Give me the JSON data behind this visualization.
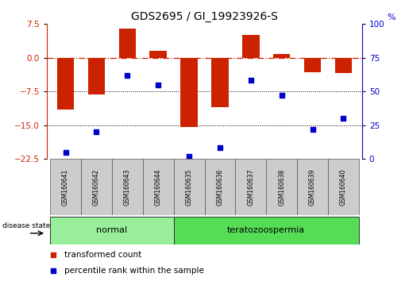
{
  "title": "GDS2695 / GI_19923926-S",
  "samples": [
    "GSM160641",
    "GSM160642",
    "GSM160643",
    "GSM160644",
    "GSM160635",
    "GSM160636",
    "GSM160637",
    "GSM160638",
    "GSM160639",
    "GSM160640"
  ],
  "bar_values": [
    -11.5,
    -8.2,
    6.5,
    1.5,
    -15.5,
    -11.0,
    5.0,
    0.8,
    -3.2,
    -3.5
  ],
  "scatter_values": [
    5,
    20,
    62,
    55,
    2,
    8,
    58,
    47,
    22,
    30
  ],
  "groups": [
    {
      "label": "normal",
      "start": 0,
      "end": 4
    },
    {
      "label": "teratozoospermia",
      "start": 4,
      "end": 10
    }
  ],
  "bar_color": "#cc2200",
  "scatter_color": "#0000cc",
  "ylim_left": [
    -22.5,
    7.5
  ],
  "ylim_right": [
    0,
    100
  ],
  "yticks_left": [
    7.5,
    0,
    -7.5,
    -15,
    -22.5
  ],
  "yticks_right": [
    100,
    75,
    50,
    25,
    0
  ],
  "dotted_lines": [
    -7.5,
    -15
  ],
  "legend_labels": [
    "transformed count",
    "percentile rank within the sample"
  ],
  "legend_colors": [
    "#cc2200",
    "#0000cc"
  ],
  "group_color_normal": "#99ee99",
  "group_color_terato": "#55dd55",
  "title_fontsize": 10,
  "bar_width": 0.55
}
